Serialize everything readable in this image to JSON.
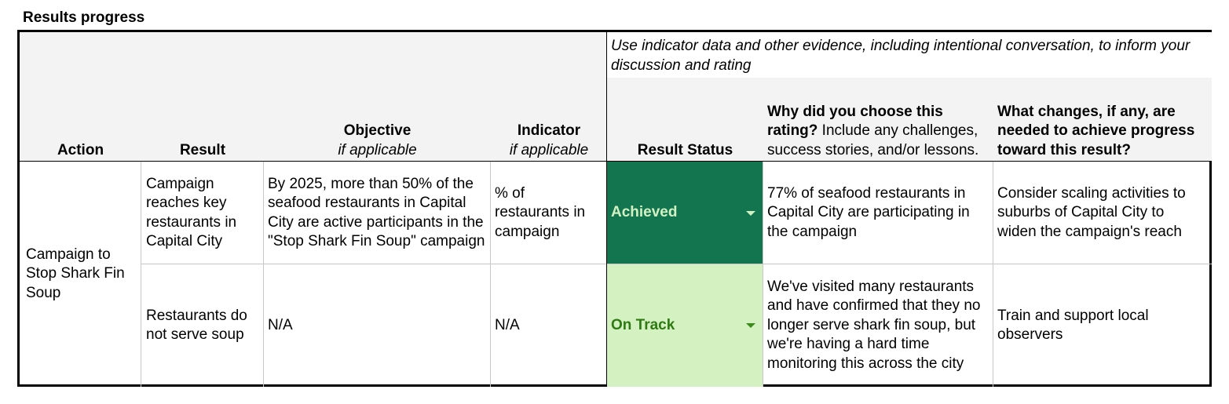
{
  "section_title": "Results progress",
  "guidance_note": "Use indicator data and other evidence, including intentional conversation, to inform your discussion and rating",
  "headers": {
    "action": "Action",
    "result": "Result",
    "objective": "Objective",
    "objective_sub": "if applicable",
    "indicator": "Indicator",
    "indicator_sub": "if applicable",
    "result_status": "Result Status",
    "why_bold": "Why did you choose this rating?",
    "why_rest": " Include any challenges, success stories, and/or lessons.",
    "changes": "What changes, if any, are needed to achieve progress toward this result?"
  },
  "action": "Campaign to Stop Shark Fin Soup",
  "rows": [
    {
      "result": "Campaign reaches key restaurants in Capital City",
      "objective": "By 2025, more than 50% of the seafood restaurants in Capital City are active participants in the \"Stop Shark Fin Soup\" campaign",
      "indicator": "% of restaurants in campaign",
      "status": "Achieved",
      "why": "77% of seafood restaurants in Capital City are participating in the campaign",
      "changes": "Consider scaling activities to suburbs of Capital City to widen the campaign's reach"
    },
    {
      "result": "Restaurants do not serve soup",
      "objective": "N/A",
      "indicator": "N/A",
      "status": "On Track",
      "why": "We've visited many restaurants and have confirmed that they no longer serve shark fin soup, but we're having a hard time monitoring this across the city",
      "changes": "Train and support local observers"
    }
  ],
  "colors": {
    "achieved_bg": "#137550",
    "achieved_text": "#d2f1c3",
    "on_track_bg": "#d4f1c2",
    "on_track_text": "#2f7a12",
    "header_bg": "#f3f3f3"
  }
}
